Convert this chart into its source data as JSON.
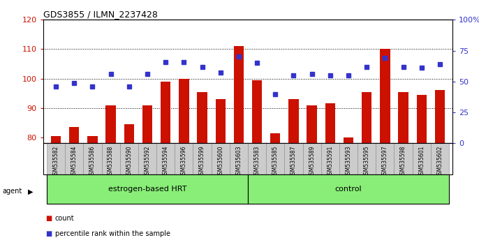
{
  "title": "GDS3855 / ILMN_2237428",
  "samples": [
    "GSM535582",
    "GSM535584",
    "GSM535586",
    "GSM535588",
    "GSM535590",
    "GSM535592",
    "GSM535594",
    "GSM535596",
    "GSM535599",
    "GSM535600",
    "GSM535603",
    "GSM535583",
    "GSM535585",
    "GSM535587",
    "GSM535589",
    "GSM535591",
    "GSM535593",
    "GSM535595",
    "GSM535597",
    "GSM535598",
    "GSM535601",
    "GSM535602"
  ],
  "counts": [
    80.5,
    83.5,
    80.5,
    91.0,
    84.5,
    91.0,
    99.0,
    100.0,
    95.5,
    93.0,
    111.0,
    99.5,
    81.5,
    93.0,
    91.0,
    91.5,
    80.0,
    95.5,
    110.0,
    95.5,
    94.5,
    96.0
  ],
  "percentile_ranks": [
    46,
    49,
    46,
    56,
    46,
    56,
    66,
    66,
    62,
    57,
    70,
    65,
    40,
    55,
    56,
    55,
    55,
    62,
    69,
    62,
    61,
    64
  ],
  "group1_count": 11,
  "group2_count": 11,
  "group1_label": "estrogen-based HRT",
  "group2_label": "control",
  "ylim_left": [
    78,
    120
  ],
  "ylim_right": [
    0,
    100
  ],
  "yticks_left": [
    80,
    90,
    100,
    110,
    120
  ],
  "yticks_right": [
    0,
    25,
    50,
    75,
    100
  ],
  "bar_color": "#cc1100",
  "dot_color": "#3333cc",
  "group_bg": "#88ee77",
  "tick_bg": "#cccccc",
  "legend_count_label": "count",
  "legend_pct_label": "percentile rank within the sample"
}
